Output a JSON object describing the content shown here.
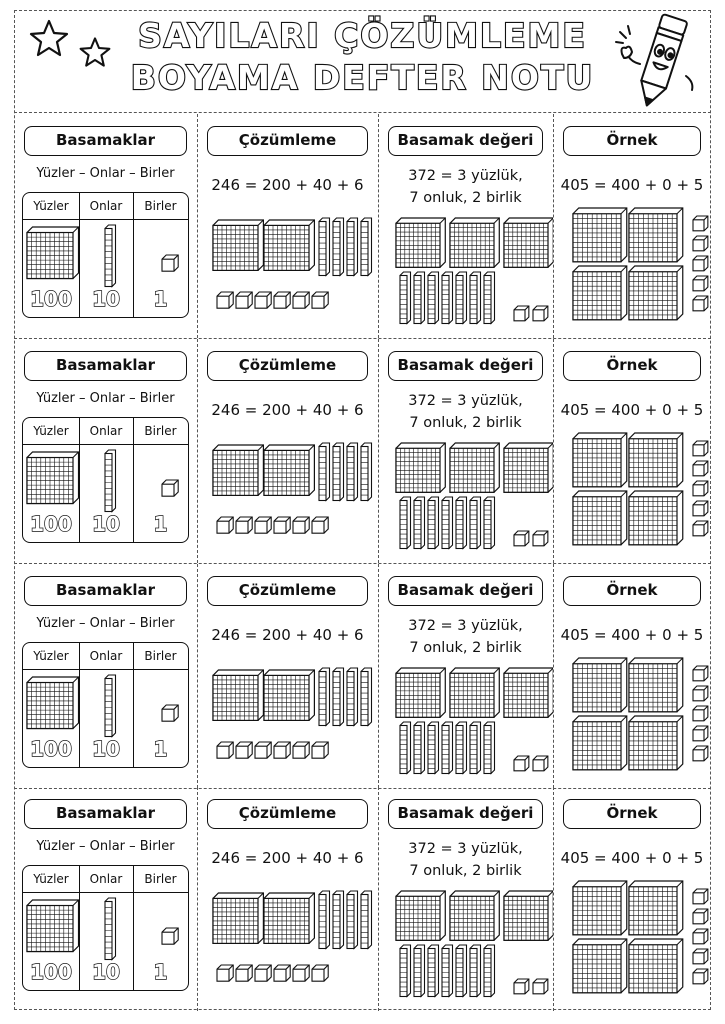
{
  "title": {
    "line1": "SAYILARI ÇÖZÜMLEME",
    "line2": "BOYAMA DEFTER NOTU"
  },
  "decor": {
    "stars": [
      "star-icon",
      "star-icon"
    ],
    "mascot": "pencil-mascot-icon"
  },
  "rows": [
    {
      "basamaklar": {
        "heading": "Basamaklar",
        "subtitle": "Yüzler – Onlar – Birler",
        "headers": [
          "Yüzler",
          "Onlar",
          "Birler"
        ],
        "values": [
          "100",
          "10",
          "1"
        ]
      },
      "cozumleme": {
        "heading": "Çözümleme",
        "equation": "246 = 200 + 40 + 6",
        "hundreds": 2,
        "tens": 4,
        "ones": 6
      },
      "basamak_degeri": {
        "heading": "Basamak değeri",
        "line1": "372 = 3 yüzlük,",
        "line2": "7 onluk, 2 birlik",
        "hundreds": 3,
        "tens": 7,
        "ones": 2
      },
      "ornek": {
        "heading": "Örnek",
        "equation": "405 = 400 + 0 + 5",
        "hundreds": 4,
        "tens": 0,
        "ones": 5
      }
    },
    {
      "basamaklar": {
        "heading": "Basamaklar",
        "subtitle": "Yüzler – Onlar – Birler",
        "headers": [
          "Yüzler",
          "Onlar",
          "Birler"
        ],
        "values": [
          "100",
          "10",
          "1"
        ]
      },
      "cozumleme": {
        "heading": "Çözümleme",
        "equation": "246 = 200 + 40 + 6",
        "hundreds": 2,
        "tens": 4,
        "ones": 6
      },
      "basamak_degeri": {
        "heading": "Basamak değeri",
        "line1": "372 = 3 yüzlük,",
        "line2": "7 onluk, 2 birlik",
        "hundreds": 3,
        "tens": 7,
        "ones": 2
      },
      "ornek": {
        "heading": "Örnek",
        "equation": "405 = 400 + 0 + 5",
        "hundreds": 4,
        "tens": 0,
        "ones": 5
      }
    },
    {
      "basamaklar": {
        "heading": "Basamaklar",
        "subtitle": "Yüzler – Onlar – Birler",
        "headers": [
          "Yüzler",
          "Onlar",
          "Birler"
        ],
        "values": [
          "100",
          "10",
          "1"
        ]
      },
      "cozumleme": {
        "heading": "Çözümleme",
        "equation": "246 = 200 + 40 + 6",
        "hundreds": 2,
        "tens": 4,
        "ones": 6
      },
      "basamak_degeri": {
        "heading": "Basamak değeri",
        "line1": "372 = 3 yüzlük,",
        "line2": "7 onluk, 2 birlik",
        "hundreds": 3,
        "tens": 7,
        "ones": 2
      },
      "ornek": {
        "heading": "Örnek",
        "equation": "405 = 400 + 0 + 5",
        "hundreds": 4,
        "tens": 0,
        "ones": 5
      }
    },
    {
      "basamaklar": {
        "heading": "Basamaklar",
        "subtitle": "Yüzler – Onlar – Birler",
        "headers": [
          "Yüzler",
          "Onlar",
          "Birler"
        ],
        "values": [
          "100",
          "10",
          "1"
        ]
      },
      "cozumleme": {
        "heading": "Çözümleme",
        "equation": "246 = 200 + 40 + 6",
        "hundreds": 2,
        "tens": 4,
        "ones": 6
      },
      "basamak_degeri": {
        "heading": "Basamak değeri",
        "line1": "372 = 3 yüzlük,",
        "line2": "7 onluk, 2 birlik",
        "hundreds": 3,
        "tens": 7,
        "ones": 2
      },
      "ornek": {
        "heading": "Örnek",
        "equation": "405 = 400 + 0 + 5",
        "hundreds": 4,
        "tens": 0,
        "ones": 5
      }
    }
  ]
}
